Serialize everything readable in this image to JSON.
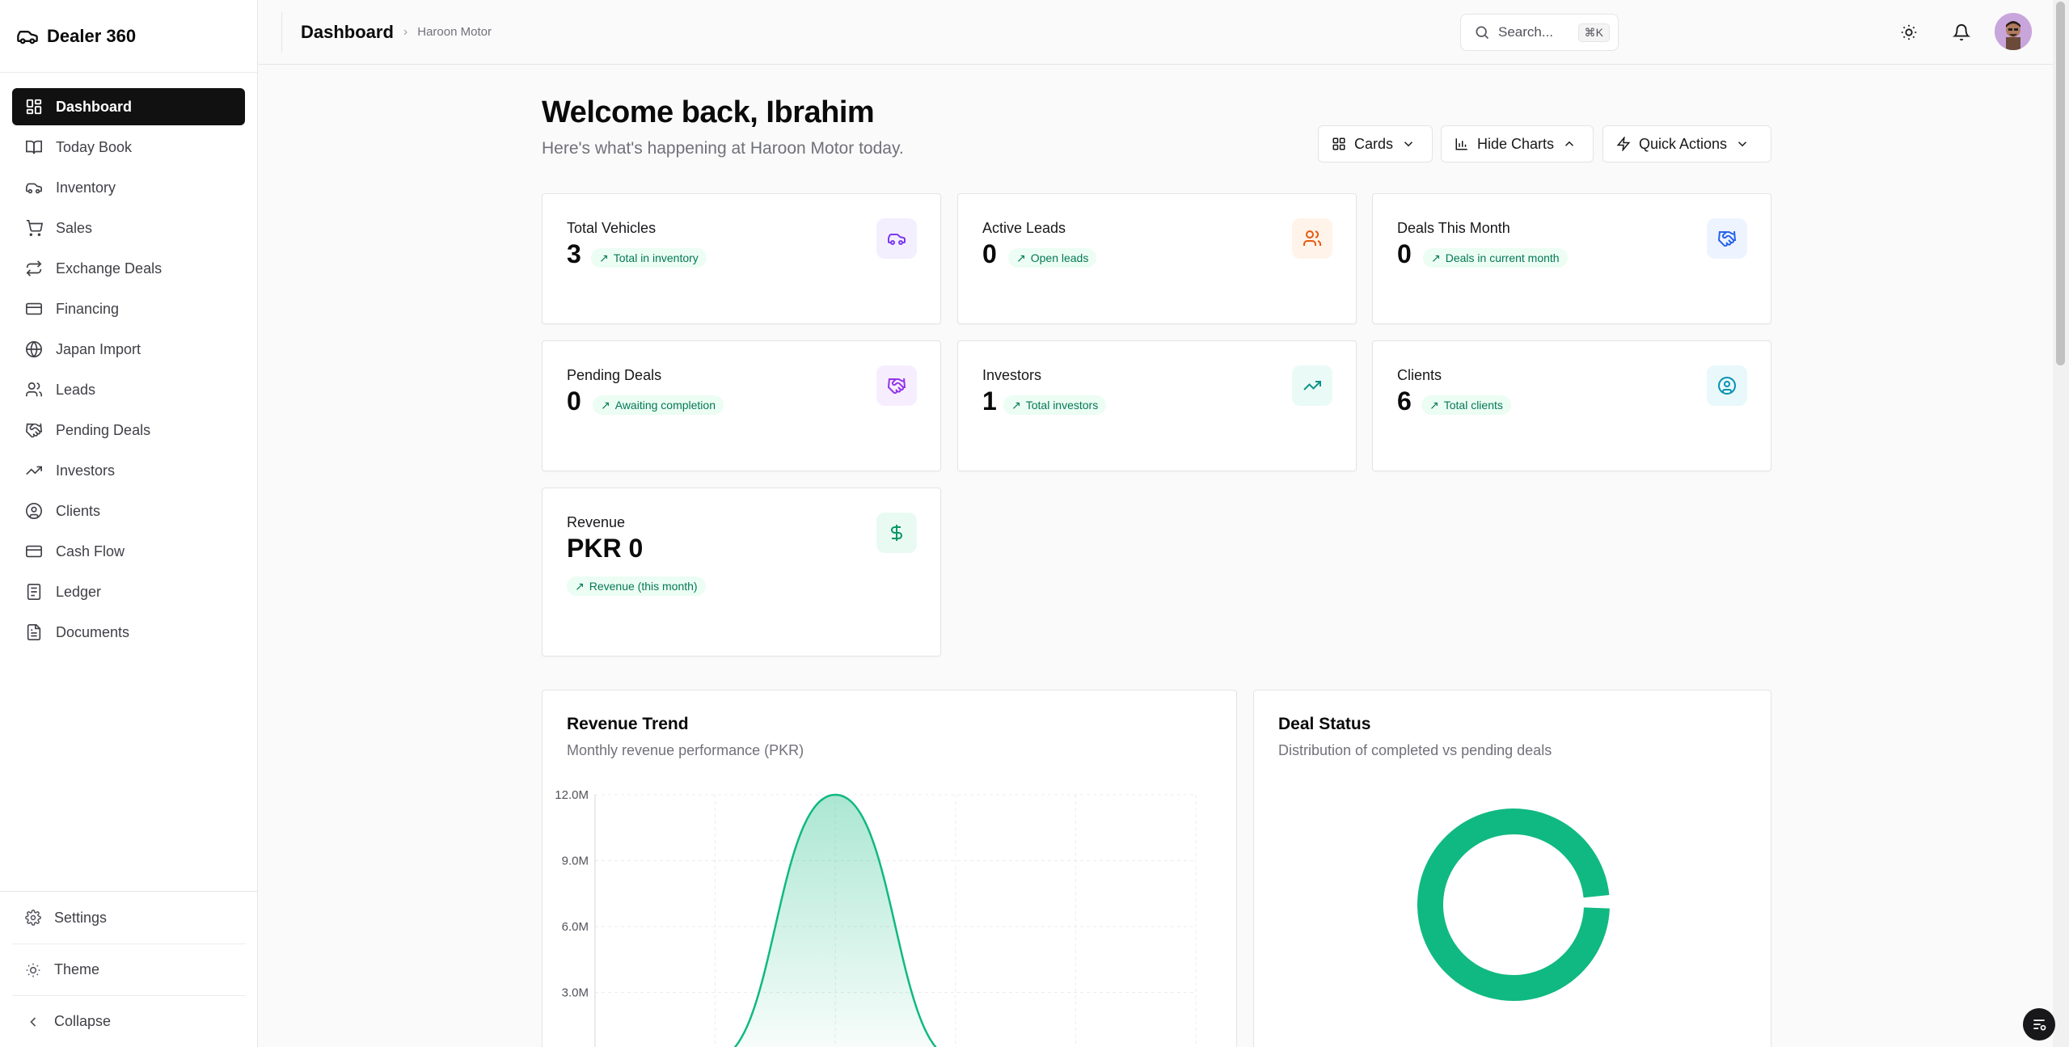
{
  "app": {
    "name": "Dealer 360"
  },
  "sidebar": {
    "items": [
      {
        "label": "Dashboard"
      },
      {
        "label": "Today Book"
      },
      {
        "label": "Inventory"
      },
      {
        "label": "Sales"
      },
      {
        "label": "Exchange Deals"
      },
      {
        "label": "Financing"
      },
      {
        "label": "Japan Import"
      },
      {
        "label": "Leads"
      },
      {
        "label": "Pending Deals"
      },
      {
        "label": "Investors"
      },
      {
        "label": "Clients"
      },
      {
        "label": "Cash Flow"
      },
      {
        "label": "Ledger"
      },
      {
        "label": "Documents"
      }
    ],
    "settings_label": "Settings",
    "theme_label": "Theme",
    "collapse_label": "Collapse"
  },
  "header": {
    "title": "Dashboard",
    "breadcrumb": "Haroon Motor",
    "search_placeholder": "Search...",
    "search_shortcut": "⌘K"
  },
  "main": {
    "welcome": "Welcome back, Ibrahim",
    "subtitle": "Here's what's happening at Haroon Motor today.",
    "toolbar": {
      "cards_label": "Cards",
      "charts_label": "Hide Charts",
      "quick_label": "Quick Actions"
    },
    "stats": [
      {
        "title": "Total Vehicles",
        "value": "3",
        "badge": "Total in inventory",
        "icon": "car-icon",
        "color": "#7c3aed",
        "bg": "#f3efff"
      },
      {
        "title": "Active Leads",
        "value": "0",
        "badge": "Open leads",
        "icon": "users-icon",
        "color": "#ea580c",
        "bg": "#fff3ea"
      },
      {
        "title": "Deals This Month",
        "value": "0",
        "badge": "Deals in current month",
        "icon": "handshake-icon",
        "color": "#2563eb",
        "bg": "#eef4ff"
      },
      {
        "title": "Pending Deals",
        "value": "0",
        "badge": "Awaiting completion",
        "icon": "handshake-icon",
        "color": "#9333ea",
        "bg": "#f6eefe"
      },
      {
        "title": "Investors",
        "value": "1",
        "badge": "Total investors",
        "icon": "trending-up-icon",
        "color": "#0d9488",
        "bg": "#eafaf7"
      },
      {
        "title": "Clients",
        "value": "6",
        "badge": "Total clients",
        "icon": "user-circle-icon",
        "color": "#0891b2",
        "bg": "#e8f8fb"
      },
      {
        "title": "Revenue",
        "value": "PKR 0",
        "badge": "Revenue (this month)",
        "icon": "dollar-icon",
        "color": "#059669",
        "bg": "#e9faf3"
      }
    ]
  },
  "charts": {
    "revenue": {
      "title": "Revenue Trend",
      "subtitle": "Monthly revenue performance (PKR)"
    },
    "deals": {
      "title": "Deal Status",
      "subtitle": "Distribution of completed vs pending deals"
    }
  },
  "chart_data": [
    {
      "type": "area",
      "title": "Revenue Trend",
      "y_ticks": [
        "12.0M",
        "9.0M",
        "6.0M",
        "3.0M"
      ],
      "ylim": [
        0,
        12000000
      ],
      "x": [
        0,
        1,
        2,
        3,
        4,
        5
      ],
      "values": [
        0,
        0,
        12000000,
        0,
        0,
        0
      ],
      "color": "#10b981"
    },
    {
      "type": "pie",
      "title": "Deal Status",
      "values": [
        99,
        1
      ],
      "color": "#10b981"
    }
  ]
}
